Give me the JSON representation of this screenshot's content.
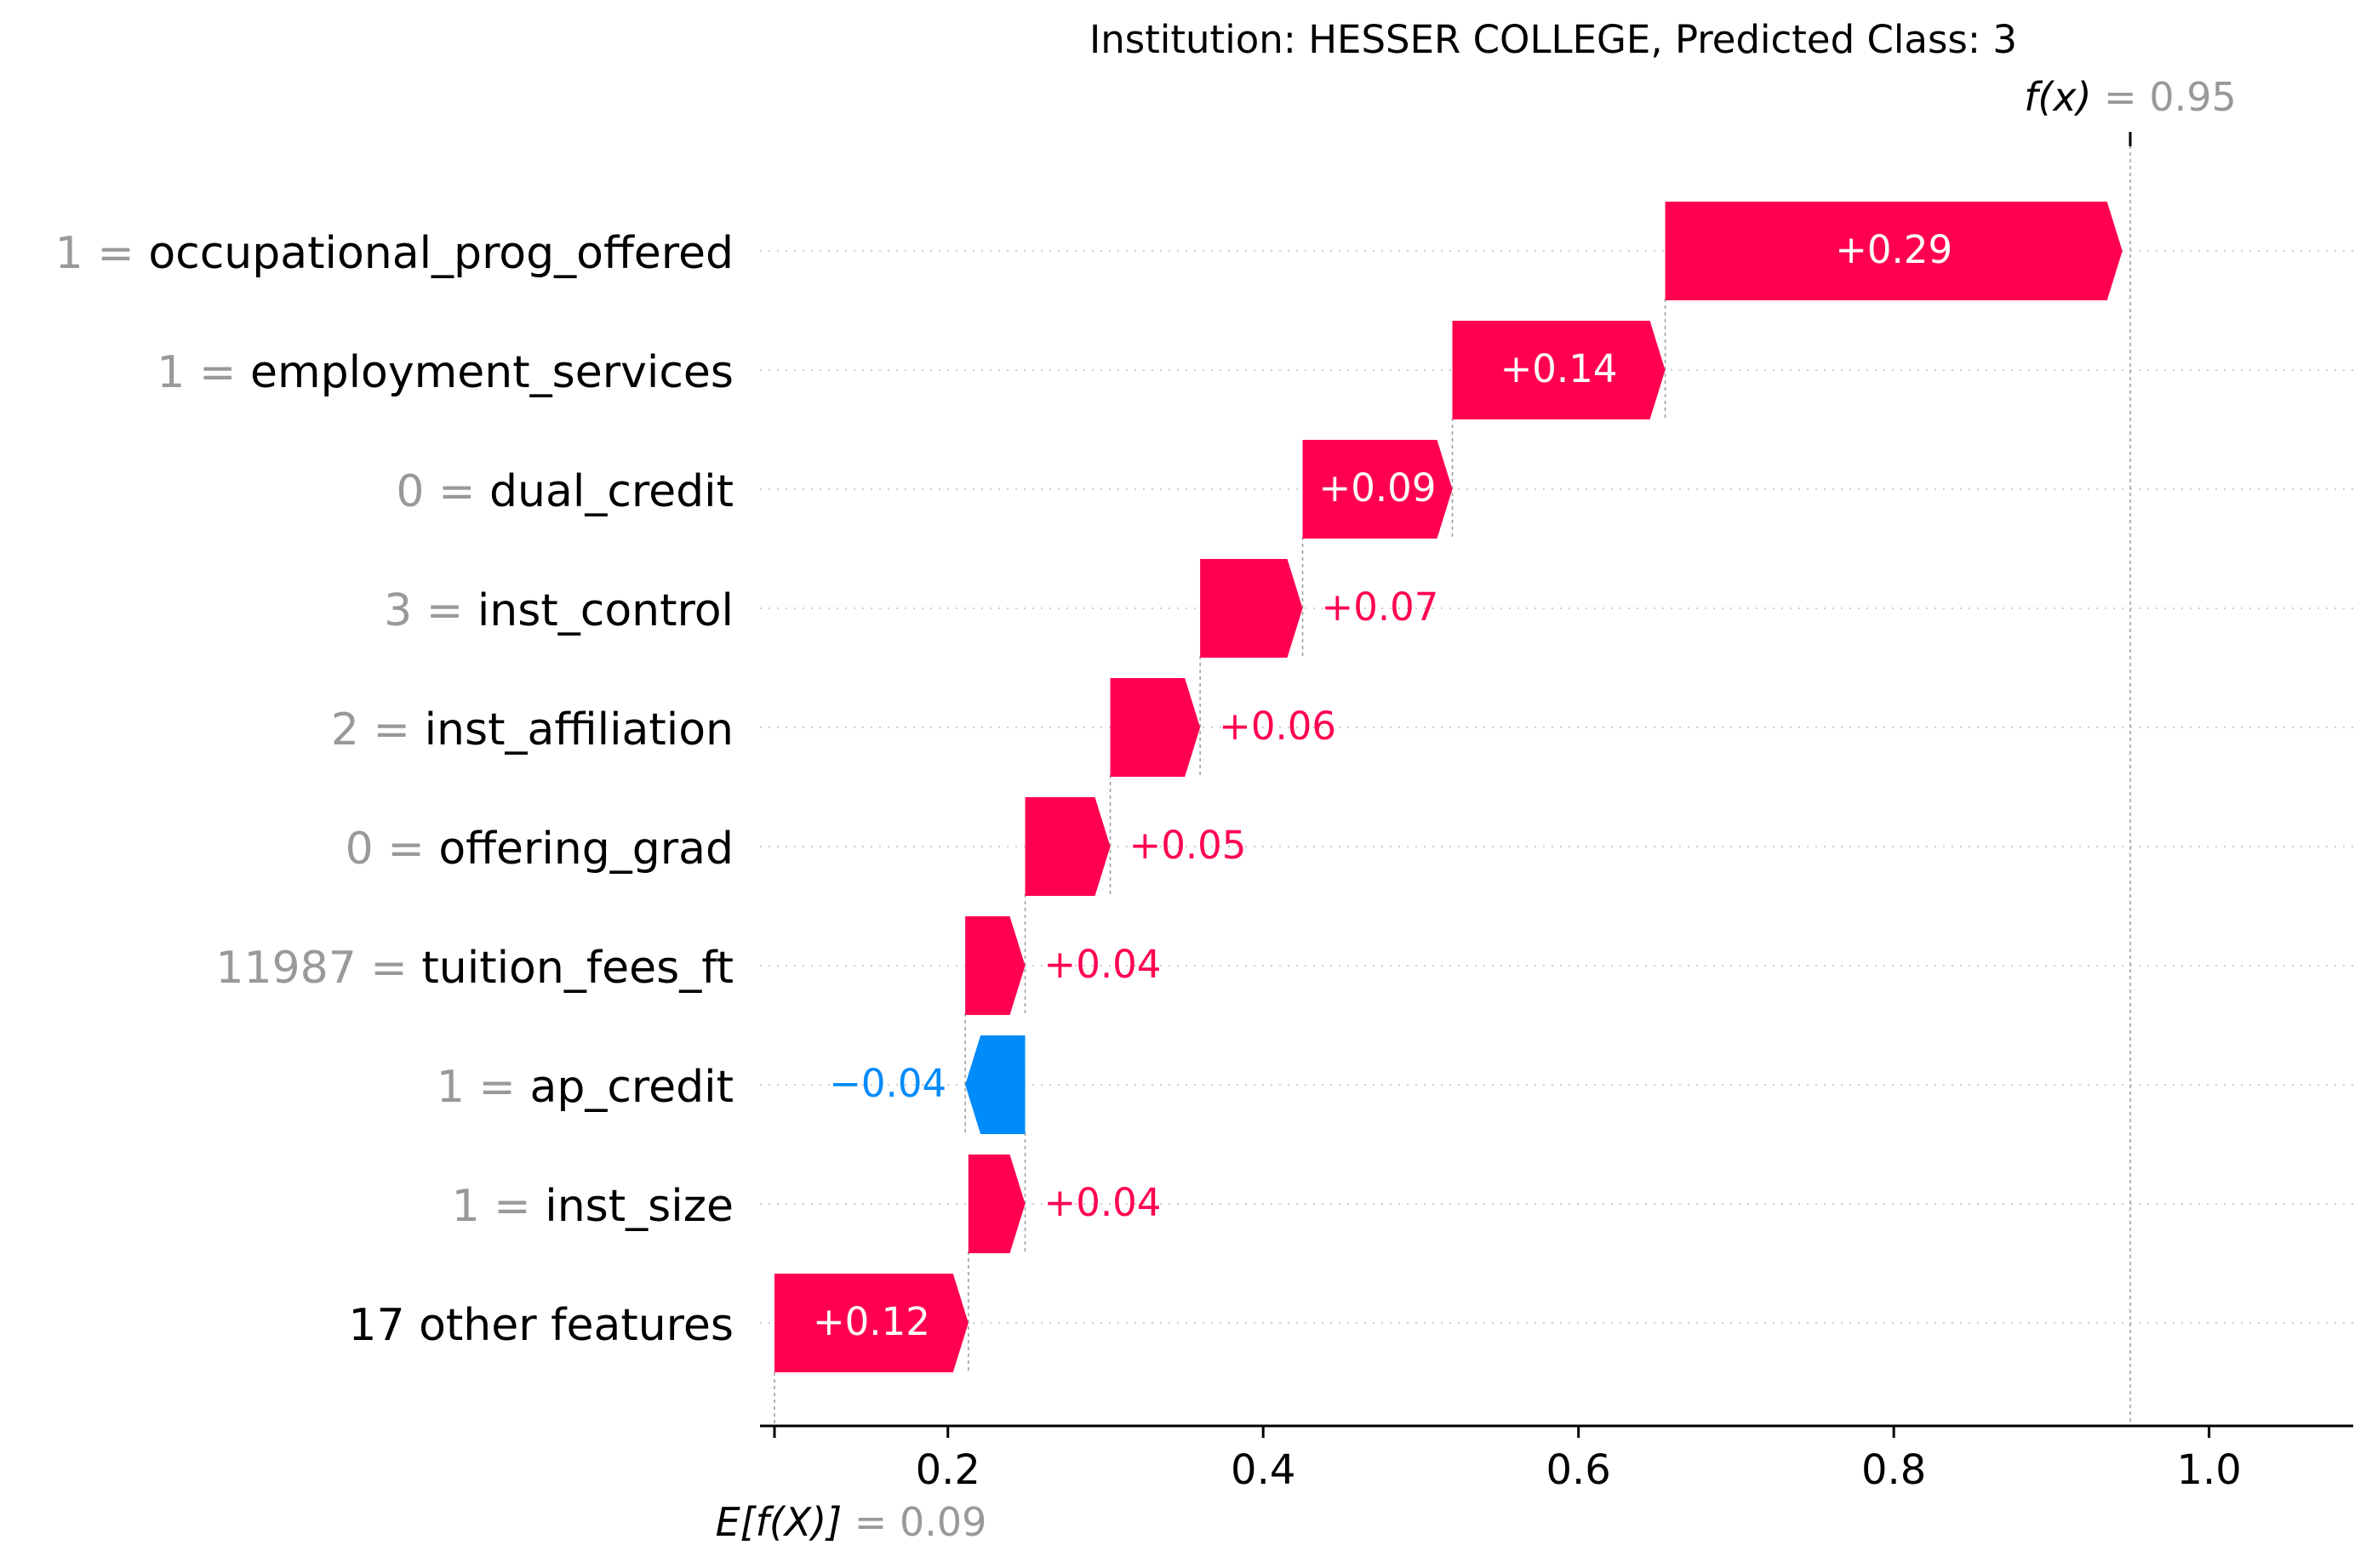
{
  "title": "Institution: HESSER COLLEGE, Predicted Class: 3",
  "colors": {
    "positive": "#ff0051",
    "negative": "#008bfb",
    "feature_value": "#999999",
    "text": "#000000",
    "grid": "#cccccc",
    "bar_label_inside": "#ffffff"
  },
  "chart_data": {
    "type": "waterfall",
    "base_value": 0.09,
    "output_value": 0.95,
    "base_label": "E[f(X)]",
    "base_value_text": "= 0.09",
    "output_label": "f(x)",
    "output_value_text": "= 0.95",
    "xlim": [
      0.09,
      1.09
    ],
    "xticks": [
      0.2,
      0.4,
      0.6,
      0.8,
      1.0
    ],
    "xtick_labels": [
      "0.2",
      "0.4",
      "0.6",
      "0.8",
      "1.0"
    ],
    "features": [
      {
        "value": "1",
        "name": "occupational_prog_offered",
        "shap": 0.29,
        "start": 0.655,
        "end": 0.945,
        "label": "+0.29",
        "label_inside": true
      },
      {
        "value": "1",
        "name": "employment_services",
        "shap": 0.14,
        "start": 0.52,
        "end": 0.655,
        "label": "+0.14",
        "label_inside": true
      },
      {
        "value": "0",
        "name": "dual_credit",
        "shap": 0.09,
        "start": 0.425,
        "end": 0.52,
        "label": "+0.09",
        "label_inside": true
      },
      {
        "value": "3",
        "name": "inst_control",
        "shap": 0.07,
        "start": 0.36,
        "end": 0.425,
        "label": "+0.07",
        "label_inside": false
      },
      {
        "value": "2",
        "name": "inst_affiliation",
        "shap": 0.06,
        "start": 0.303,
        "end": 0.36,
        "label": "+0.06",
        "label_inside": false
      },
      {
        "value": "0",
        "name": "offering_grad",
        "shap": 0.05,
        "start": 0.249,
        "end": 0.303,
        "label": "+0.05",
        "label_inside": false
      },
      {
        "value": "11987",
        "name": "tuition_fees_ft",
        "shap": 0.04,
        "start": 0.211,
        "end": 0.249,
        "label": "+0.04",
        "label_inside": false
      },
      {
        "value": "1",
        "name": "ap_credit",
        "shap": -0.04,
        "start": 0.249,
        "end": 0.211,
        "label": "−0.04",
        "label_inside": false
      },
      {
        "value": "1",
        "name": "inst_size",
        "shap": 0.04,
        "start": 0.213,
        "end": 0.249,
        "label": "+0.04",
        "label_inside": false
      },
      {
        "value": "",
        "name": "17 other features",
        "shap": 0.12,
        "start": 0.09,
        "end": 0.213,
        "label": "+0.12",
        "label_inside": true
      }
    ]
  }
}
